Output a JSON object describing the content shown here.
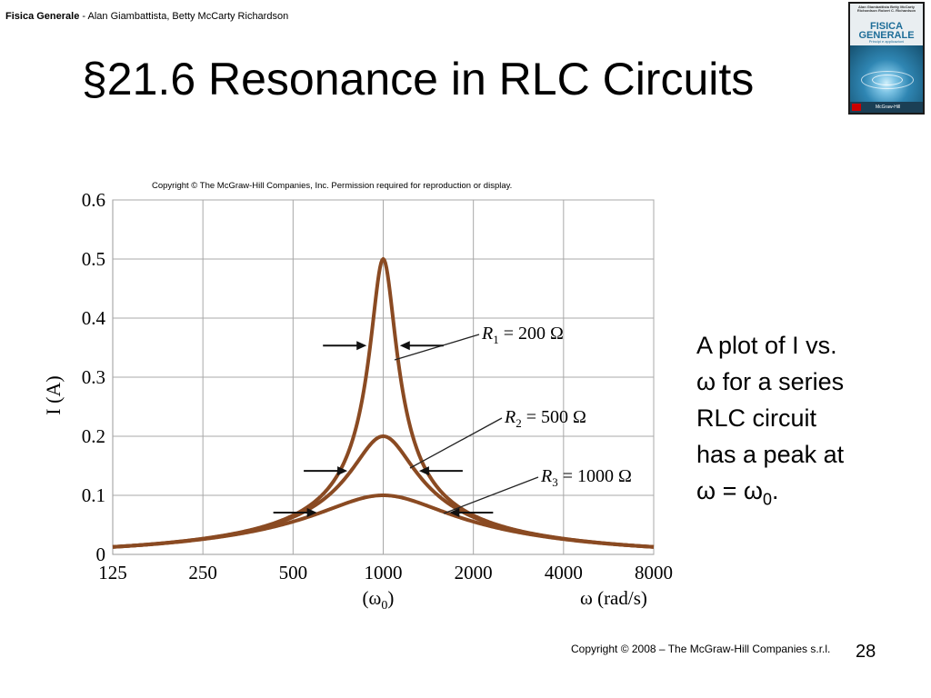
{
  "header": {
    "book": "Fisica Generale",
    "authors": " - Alan Giambattista, Betty McCarty Richardson"
  },
  "title": "§21.6 Resonance in RLC Circuits",
  "cover": {
    "authors": "Alan Giambattista Betty McCarty Richardson Robert C. Richardson",
    "title_line1": "FISICA",
    "title_line2": "GENERALE",
    "subtitle": "Principi e applicazioni",
    "publisher": "McGraw-Hill"
  },
  "figure_copyright": "Copyright © The McGraw-Hill Companies, Inc. Permission required for reproduction or display.",
  "description": {
    "line1": "A plot of I vs.",
    "line2": "ω for a series",
    "line3": "RLC circuit",
    "line4": "has a peak at",
    "line5": "ω = ω",
    "sub": "0",
    "end": "."
  },
  "footer": {
    "copyright": "Copyright © 2008 – The McGraw-Hill Companies s.r.l.",
    "page": "28"
  },
  "chart_data": {
    "type": "line",
    "x_scale": "log2",
    "x_ticks": [
      "125",
      "250",
      "500",
      "1000",
      "2000",
      "4000",
      "8000"
    ],
    "y_ticks": [
      "0",
      "0.1",
      "0.2",
      "0.3",
      "0.4",
      "0.5",
      "0.6"
    ],
    "xlim": [
      125,
      8000
    ],
    "ylim": [
      0,
      0.6
    ],
    "ylabel": "I (A)",
    "xlabel": "ω (rad/s)",
    "x_center_label": "(ω",
    "x_center_sub": "0",
    "x_center_close": ")",
    "resonance_omega": 1000,
    "grid": true,
    "line_color": "#8a4a22",
    "series": [
      {
        "label": "R",
        "sub": "1",
        "rest": " = 200 Ω",
        "R": 200,
        "peak": 0.5
      },
      {
        "label": "R",
        "sub": "2",
        "rest": " = 500 Ω",
        "R": 500,
        "peak": 0.2
      },
      {
        "label": "R",
        "sub": "3",
        "rest": " = 1000 Ω",
        "R": 1000,
        "peak": 0.1
      }
    ]
  }
}
